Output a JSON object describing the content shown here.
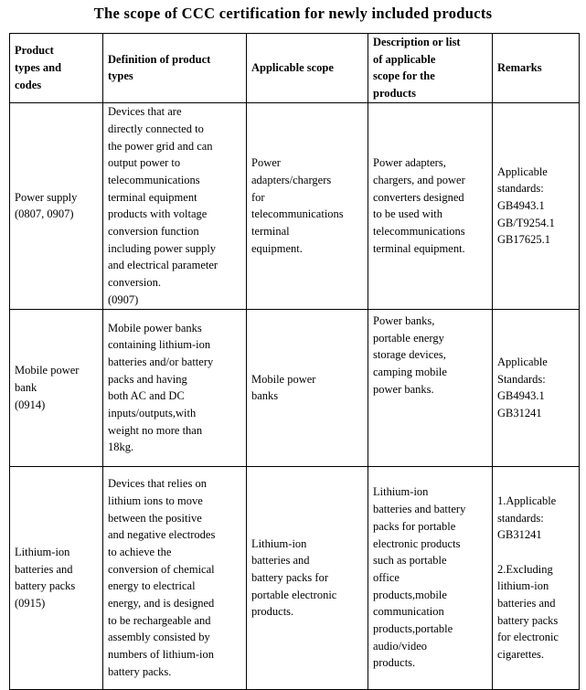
{
  "title": "The scope of CCC certification for newly included products",
  "headers": [
    [
      "Product",
      "types and",
      "codes"
    ],
    [
      "Definition of product",
      "types"
    ],
    [
      "Applicable scope"
    ],
    [
      "Description or list",
      "of applicable",
      "scope for the",
      "products"
    ],
    [
      "Remarks"
    ]
  ],
  "rows": [
    [
      [
        "Power supply",
        "(0807, 0907)"
      ],
      [
        "Devices that are",
        "directly connected to",
        "the power grid and can",
        "output power to",
        "telecommunications",
        "terminal equipment",
        "products with voltage",
        "conversion function",
        "including power supply",
        "and electrical parameter",
        "conversion.",
        "(0907)"
      ],
      [
        "Power",
        "adapters/chargers",
        "for",
        "telecommunications",
        "terminal",
        "equipment."
      ],
      [
        "Power adapters,",
        "chargers, and power",
        "converters designed",
        "to be used with",
        "telecommunications",
        "terminal equipment."
      ],
      [
        "Applicable",
        "standards:",
        "GB4943.1",
        "GB/T9254.1",
        "GB17625.1"
      ]
    ],
    [
      [
        "Mobile power",
        "bank",
        "(0914)"
      ],
      [
        "Mobile power banks",
        "containing lithium-ion",
        "batteries and/or battery",
        "packs and having",
        "both AC and DC",
        "inputs/outputs,with",
        "weight no more than",
        "18kg."
      ],
      [
        "Mobile power",
        "banks"
      ],
      [
        "Power banks,",
        "portable energy",
        "storage devices,",
        "camping mobile",
        "power banks."
      ],
      [
        "Applicable",
        "Standards:",
        "GB4943.1",
        "GB31241"
      ]
    ],
    [
      [
        "Lithium-ion",
        "batteries and",
        "battery packs",
        "(0915)"
      ],
      [
        "Devices that relies on",
        "lithium ions to move",
        "between the positive",
        "and negative electrodes",
        "to achieve the",
        "conversion of chemical",
        "energy to electrical",
        "energy, and is designed",
        "to be rechargeable and",
        "assembly consisted by",
        "numbers of lithium-ion",
        "battery packs."
      ],
      [
        "Lithium-ion",
        "batteries and",
        "battery packs for",
        "portable electronic",
        "products."
      ],
      [
        "Lithium-ion",
        "batteries and battery",
        "packs for portable",
        "electronic products",
        "such as portable",
        "office",
        "products,mobile",
        "communication",
        "products,portable",
        "audio/video",
        "products."
      ],
      [
        "1.Applicable",
        "standards:",
        "GB31241",
        "",
        "2.Excluding",
        "lithium-ion",
        "batteries and",
        "battery packs",
        "for electronic",
        "cigarettes."
      ]
    ]
  ]
}
